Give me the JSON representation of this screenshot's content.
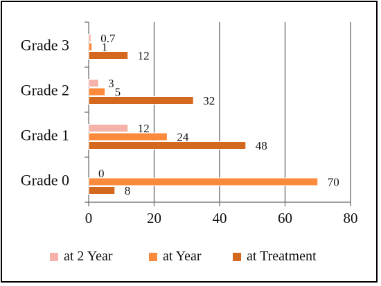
{
  "chart_data": {
    "type": "bar",
    "orientation": "horizontal",
    "categories": [
      "Grade 0",
      "Grade 1",
      "Grade 2",
      "Grade 3"
    ],
    "series": [
      {
        "name": "at 2 Year",
        "values": [
          0,
          12,
          3,
          0.7
        ],
        "color": "#f4b2a8"
      },
      {
        "name": "at Year",
        "values": [
          70,
          24,
          5,
          1
        ],
        "color": "#fb8a3c"
      },
      {
        "name": "at Treatment",
        "values": [
          8,
          48,
          32,
          12
        ],
        "color": "#d4681f"
      }
    ],
    "data_labels": {
      "at 2 Year": [
        "0",
        "12",
        "3",
        "0.7"
      ],
      "at Year": [
        "70",
        "24",
        "5",
        "1"
      ],
      "at Treatment": [
        "8",
        "48",
        "32",
        "12"
      ]
    },
    "xlim": [
      0,
      80
    ],
    "xticks": [
      0,
      20,
      40,
      60,
      80
    ],
    "grid": true,
    "legend_position": "bottom"
  }
}
